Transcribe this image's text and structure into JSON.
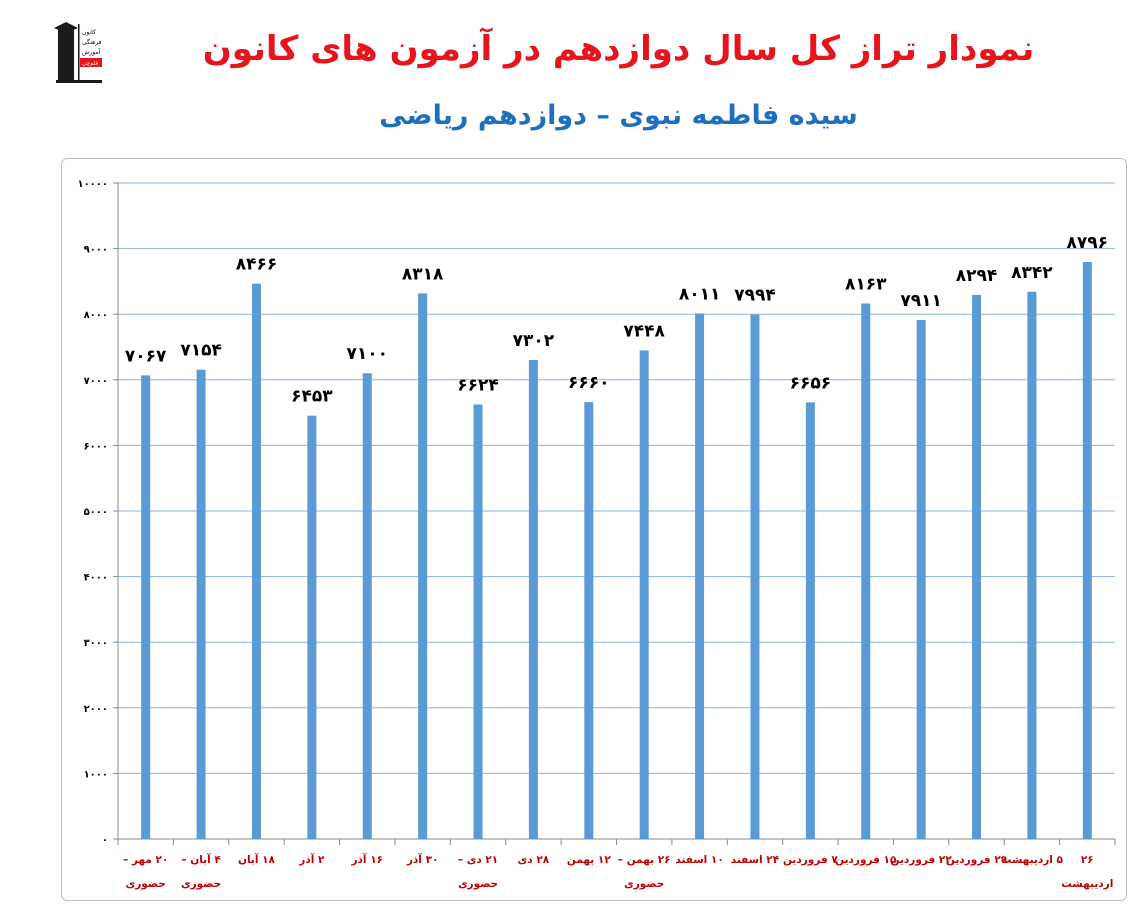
{
  "title": "نمودار تراز کل سال دوازدهم در آزمون های کانون",
  "subtitle": "سیده فاطمه نبوی – دوازدهم ریاضی",
  "logo": {
    "lines": [
      "کانون",
      "فرهنگی",
      "آموزش",
      "قلم‌چی"
    ]
  },
  "colors": {
    "title": "#e8141c",
    "subtitle": "#1f6fbf",
    "bar": "#5b9bd5",
    "x_label": "#c00000",
    "grid": "#8db3e2"
  },
  "chart_data": {
    "type": "bar",
    "ylim": [
      0,
      10000
    ],
    "grid": true,
    "y_ticks": [
      "۰",
      "۱۰۰۰",
      "۲۰۰۰",
      "۳۰۰۰",
      "۴۰۰۰",
      "۵۰۰۰",
      "۶۰۰۰",
      "۷۰۰۰",
      "۸۰۰۰",
      "۹۰۰۰",
      "۱۰۰۰۰"
    ],
    "y_tick_values": [
      0,
      1000,
      2000,
      3000,
      4000,
      5000,
      6000,
      7000,
      8000,
      9000,
      10000
    ],
    "categories": [
      [
        "۲۰ مهر –",
        "حضوری"
      ],
      [
        "۴ آبان –",
        "حضوری"
      ],
      [
        "۱۸ آبان"
      ],
      [
        "۲ آذر"
      ],
      [
        "۱۶ آذر"
      ],
      [
        "۳۰ آذر"
      ],
      [
        "۲۱ دی –",
        "حضوری"
      ],
      [
        "۲۸ دی"
      ],
      [
        "۱۲ بهمن"
      ],
      [
        "۲۶ بهمن –",
        "حضوری"
      ],
      [
        "۱۰ اسفند"
      ],
      [
        "۲۴ اسفند"
      ],
      [
        "۷ فروردین"
      ],
      [
        "۱۵ فروردین"
      ],
      [
        "۲۲ فروردین"
      ],
      [
        "۲۹ فروردین"
      ],
      [
        "۵ اردیبهشت"
      ],
      [
        "۲۶",
        "اردیبهشت"
      ]
    ],
    "values": [
      7067,
      7154,
      8466,
      6453,
      7100,
      8318,
      6624,
      7302,
      6660,
      7448,
      8011,
      7994,
      6656,
      8163,
      7911,
      8294,
      8342,
      8796
    ],
    "data_labels": [
      "۷۰۶۷",
      "۷۱۵۴",
      "۸۴۶۶",
      "۶۴۵۳",
      "۷۱۰۰",
      "۸۳۱۸",
      "۶۶۲۴",
      "۷۳۰۲",
      "۶۶۶۰",
      "۷۴۴۸",
      "۸۰۱۱",
      "۷۹۹۴",
      "۶۶۵۶",
      "۸۱۶۳",
      "۷۹۱۱",
      "۸۲۹۴",
      "۸۳۴۲",
      "۸۷۹۶"
    ]
  }
}
